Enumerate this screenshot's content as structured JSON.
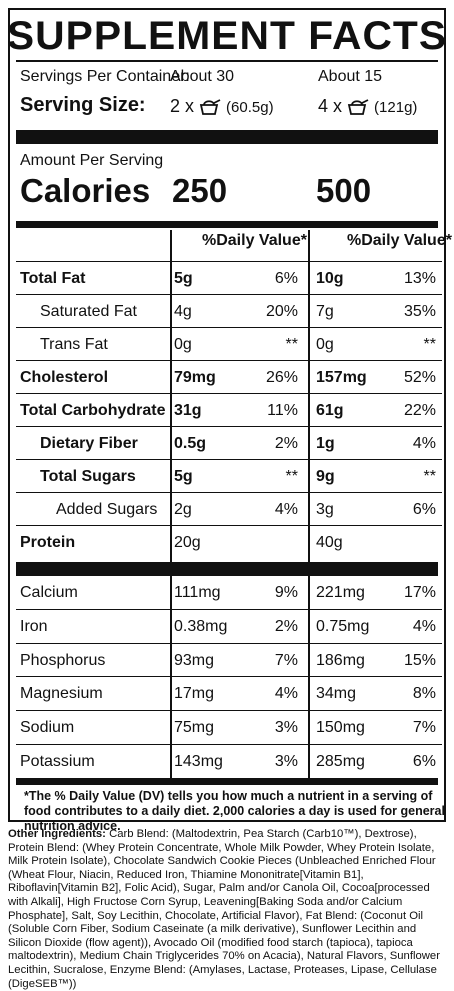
{
  "title": "SUPPLEMENT FACTS",
  "servings": {
    "per_container_label": "Servings Per Container:",
    "per_container_1": "About 30",
    "per_container_2": "About 15",
    "size_label": "Serving Size:",
    "size_1_prefix": "2 x",
    "size_1_suffix": "(60.5g)",
    "size_2_prefix": "4 x",
    "size_2_suffix": "(121g)",
    "scoop_icon": "scoop-icon"
  },
  "amount_label": "Amount Per Serving",
  "calories_label": "Calories",
  "calories_1": "250",
  "calories_2": "500",
  "dv_header": "%Daily Value*",
  "nutrients": [
    {
      "name": "Total Fat",
      "bold": true,
      "indent": 0,
      "v1": "5g",
      "p1": "6%",
      "v2": "10g",
      "p2": "13%"
    },
    {
      "name": "Saturated Fat",
      "bold": false,
      "indent": 1,
      "v1": "4g",
      "p1": "20%",
      "v2": "7g",
      "p2": "35%"
    },
    {
      "name": "Trans Fat",
      "bold": false,
      "indent": 1,
      "v1": "0g",
      "p1": "**",
      "v2": "0g",
      "p2": "**"
    },
    {
      "name": "Cholesterol",
      "bold": true,
      "indent": 0,
      "v1": "79mg",
      "p1": "26%",
      "v2": "157mg",
      "p2": "52%"
    },
    {
      "name": "Total Carbohydrate",
      "bold": true,
      "indent": 0,
      "v1": "31g",
      "p1": "11%",
      "v2": "61g",
      "p2": "22%"
    },
    {
      "name": "Dietary Fiber",
      "bold": true,
      "indent": 1,
      "v1": "0.5g",
      "p1": "2%",
      "v2": "1g",
      "p2": "4%"
    },
    {
      "name": "Total Sugars",
      "bold": true,
      "indent": 1,
      "v1": "5g",
      "p1": "**",
      "v2": "9g",
      "p2": "**"
    },
    {
      "name": "Added Sugars",
      "bold": false,
      "indent": 2,
      "v1": "2g",
      "p1": "4%",
      "v2": "3g",
      "p2": "6%"
    },
    {
      "name": "Protein",
      "bold": true,
      "indent": 0,
      "v1": "20g",
      "p1": "",
      "v2": "40g",
      "p2": ""
    }
  ],
  "minerals": [
    {
      "name": "Calcium",
      "v1": "111mg",
      "p1": "9%",
      "v2": "221mg",
      "p2": "17%"
    },
    {
      "name": "Iron",
      "v1": "0.38mg",
      "p1": "2%",
      "v2": "0.75mg",
      "p2": "4%"
    },
    {
      "name": "Phosphorus",
      "v1": "93mg",
      "p1": "7%",
      "v2": "186mg",
      "p2": "15%"
    },
    {
      "name": "Magnesium",
      "v1": "17mg",
      "p1": "4%",
      "v2": "34mg",
      "p2": "8%"
    },
    {
      "name": "Sodium",
      "v1": "75mg",
      "p1": "3%",
      "v2": "150mg",
      "p2": "7%"
    },
    {
      "name": "Potassium",
      "v1": "143mg",
      "p1": "3%",
      "v2": "285mg",
      "p2": "6%"
    }
  ],
  "footnote": "*The % Daily Value (DV) tells you how much a nutrient in a serving of food contributes to a daily diet. 2,000 calories a day is used for general nutrition advice.",
  "ingredients_label": "Other Ingredients:",
  "ingredients_text": "Carb Blend: (Maltodextrin, Pea Starch (Carb10™), Dextrose), Protein Blend: (Whey Protein Concentrate, Whole Milk Powder, Whey Protein Isolate, Milk Protein Isolate), Chocolate Sandwich Cookie Pieces (Unbleached Enriched Flour (Wheat Flour, Niacin, Reduced Iron, Thiamine Mononitrate[Vitamin B1], Riboflavin[Vitamin B2], Folic Acid), Sugar, Palm and/or Canola Oil, Cocoa[processed with Alkali], High Fructose Corn Syrup, Leavening[Baking Soda and/or Calcium Phosphate], Salt, Soy Lecithin, Chocolate, Artificial Flavor), Fat Blend: (Coconut Oil (Soluble Corn Fiber, Sodium Caseinate (a milk derivative), Sunflower Lecithin and Silicon Dioxide (flow agent)), Avocado Oil (modified food starch (tapioca), tapioca maltodextrin), Medium Chain Triglycerides 70% on Acacia), Natural Flavors, Sunflower Lecithin, Sucralose, Enzyme Blend: (Amylases, Lactase, Proteases, Lipase, Cellulase (DigeSEB™))"
}
